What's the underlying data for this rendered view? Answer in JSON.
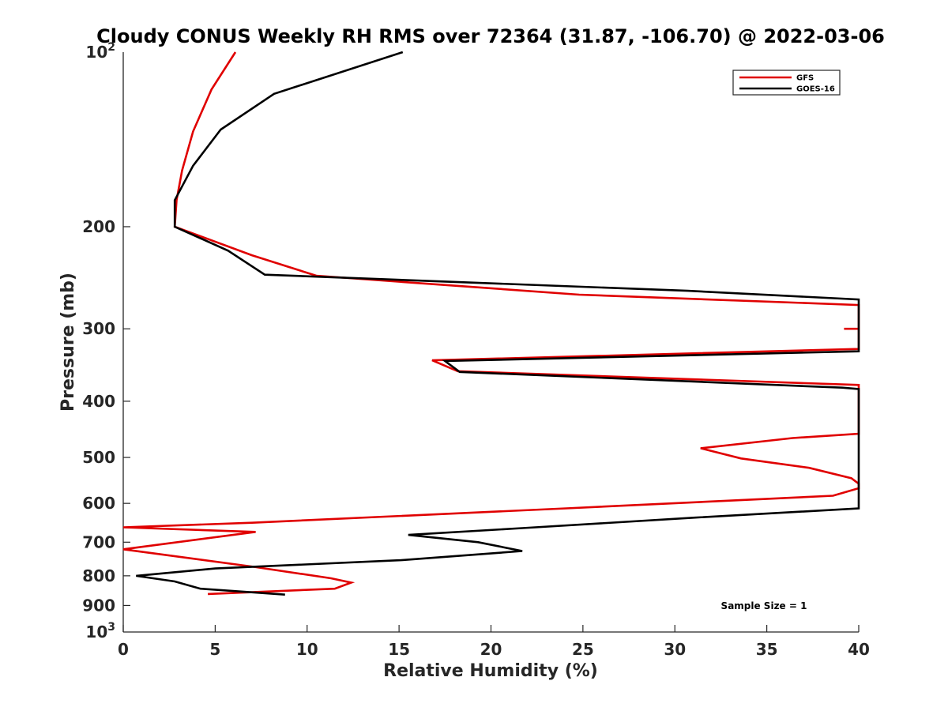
{
  "chart_data": {
    "type": "line",
    "title": "Cloudy CONUS Weekly RH RMS over 72364 (31.87, -106.70) @ 2022-03-06",
    "xlabel": "Relative Humidity (%)",
    "ylabel": "Pressure (mb)",
    "xlim": [
      0,
      40
    ],
    "ylim": [
      100,
      1000
    ],
    "y_scale": "log",
    "y_reversed": true,
    "x_ticks": [
      "0",
      "5",
      "10",
      "15",
      "20",
      "25",
      "30",
      "35",
      "40"
    ],
    "y_ticks": [
      {
        "value": 100,
        "base": "10",
        "exp": "2"
      },
      {
        "value": 200,
        "label": "200"
      },
      {
        "value": 300,
        "label": "300"
      },
      {
        "value": 400,
        "label": "400"
      },
      {
        "value": 500,
        "label": "500"
      },
      {
        "value": 600,
        "label": "600"
      },
      {
        "value": 700,
        "label": "700"
      },
      {
        "value": 800,
        "label": "800"
      },
      {
        "value": 900,
        "label": "900"
      },
      {
        "value": 1000,
        "base": "10",
        "exp": "3"
      }
    ],
    "grid": false,
    "legend_position": "top-right",
    "annotation": "Sample Size = 1",
    "series": [
      {
        "name": "GFS",
        "color": "#e00000",
        "points": [
          [
            6.1,
            100
          ],
          [
            4.8,
            116
          ],
          [
            3.8,
            137
          ],
          [
            3.2,
            160
          ],
          [
            2.9,
            180
          ],
          [
            2.8,
            200
          ],
          [
            7.0,
            224
          ],
          [
            10.5,
            243
          ],
          [
            24.8,
            262
          ],
          [
            40,
            273
          ],
          [
            40,
            300
          ],
          [
            39.2,
            300
          ],
          [
            40,
            300
          ],
          [
            40,
            325
          ],
          [
            16.8,
            340
          ],
          [
            18.2,
            355
          ],
          [
            40,
            375
          ],
          [
            40,
            455
          ],
          [
            36.4,
            463
          ],
          [
            31.4,
            482
          ],
          [
            33.6,
            502
          ],
          [
            37.3,
            521
          ],
          [
            39.6,
            543
          ],
          [
            40,
            555
          ],
          [
            40,
            565
          ],
          [
            38.6,
            582
          ],
          [
            24.1,
            612
          ],
          [
            7.0,
            648
          ],
          [
            0,
            660
          ],
          [
            7.2,
            672
          ],
          [
            0,
            720
          ],
          [
            7.1,
            772
          ],
          [
            11.3,
            808
          ],
          [
            12.4,
            822
          ],
          [
            11.5,
            842
          ],
          [
            4.6,
            860
          ]
        ]
      },
      {
        "name": "GOES-16",
        "color": "#000000",
        "points": [
          [
            15.2,
            100
          ],
          [
            8.2,
            118
          ],
          [
            5.3,
            136
          ],
          [
            3.8,
            157
          ],
          [
            2.8,
            180
          ],
          [
            2.8,
            200
          ],
          [
            5.7,
            220
          ],
          [
            7.7,
            242
          ],
          [
            30.7,
            258
          ],
          [
            40,
            267
          ],
          [
            40,
            328
          ],
          [
            17.5,
            341
          ],
          [
            18.3,
            356
          ],
          [
            39.1,
            379
          ],
          [
            40,
            381
          ],
          [
            40,
            612
          ],
          [
            31.1,
            635
          ],
          [
            21.7,
            662
          ],
          [
            15.5,
            680
          ],
          [
            19.3,
            700
          ],
          [
            21.7,
            725
          ],
          [
            15.1,
            752
          ],
          [
            5.0,
            777
          ],
          [
            0.7,
            800
          ],
          [
            2.8,
            818
          ],
          [
            4.2,
            842
          ],
          [
            8.8,
            862
          ]
        ]
      }
    ]
  }
}
